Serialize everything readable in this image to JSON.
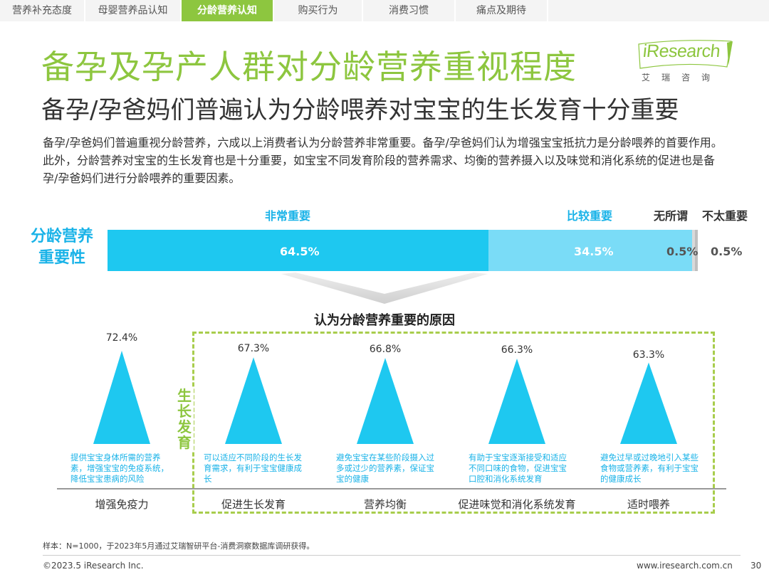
{
  "tabs": [
    {
      "label": "营养补充态度",
      "active": false
    },
    {
      "label": "母婴营养品认知",
      "active": false
    },
    {
      "label": "分龄营养认知",
      "active": true
    },
    {
      "label": "购买行为",
      "active": false
    },
    {
      "label": "消费习惯",
      "active": false
    },
    {
      "label": "痛点及期待",
      "active": false
    }
  ],
  "header": {
    "title": "备孕及孕产人群对分龄营养重视程度",
    "subtitle": "备孕/孕爸妈们普遍认为分龄喂养对宝宝的生长发育十分重要"
  },
  "logo": {
    "text": "iResearch",
    "cn": "艾瑞咨询"
  },
  "body_text": "备孕/孕爸妈们普遍重视分龄营养，六成以上消费者认为分龄营养非常重要。备孕/孕爸妈们认为增强宝宝抵抗力是分龄喂养的首要作用。此外，分龄营养对宝宝的生长发育也是十分重要，如宝宝不同发育阶段的营养需求、均衡的营养摄入以及味觉和消化系统的促进也是备孕/孕爸妈们进行分龄喂养的重要因素。",
  "colors": {
    "accent": "#8dc63f",
    "very_important": "#1ec8f0",
    "fairly_important": "#7adcf7",
    "indifferent": "#d9d9d9",
    "not_important": "#bfbfbf"
  },
  "chart_data": [
    {
      "type": "bar",
      "stacked": true,
      "orientation": "horizontal",
      "categories": [
        "分龄营养重要性"
      ],
      "series": [
        {
          "name": "非常重要",
          "values": [
            64.5
          ],
          "label": "64.5%"
        },
        {
          "name": "比较重要",
          "values": [
            34.5
          ],
          "label": "34.5%"
        },
        {
          "name": "无所谓",
          "values": [
            0.5
          ],
          "label": "0.5%"
        },
        {
          "name": "不太重要",
          "values": [
            0.5
          ],
          "label": "0.5%"
        }
      ],
      "row_label": "分龄营养重要性",
      "row_label_lines": [
        "分龄营养",
        "重要性"
      ]
    },
    {
      "type": "bar",
      "title": "认为分龄营养重要的原因",
      "categories": [
        "增强免疫力",
        "促进生长发育",
        "营养均衡",
        "促进味觉和消化系统发育",
        "适时喂养"
      ],
      "values": [
        72.4,
        67.3,
        66.8,
        66.3,
        63.3
      ],
      "labels": [
        "72.4%",
        "67.3%",
        "66.8%",
        "66.3%",
        "63.3%"
      ],
      "descriptions": [
        "提供宝宝身体所需的营养素，增强宝宝的免疫系统，降低宝宝患病的风险",
        "可以适应不同阶段的生长发育需求，有利于宝宝健康成长",
        "避免宝宝在某些阶段摄入过多或过少的营养素，保证宝宝的健康",
        "有助于宝宝逐渐接受和适应不同口味的食物，促进宝宝口腔和消化系统发育",
        "避免过早或过晚地引入某些食物或营养素，有利于宝宝的健康成长"
      ],
      "group_label": "生长发育",
      "group_label_chars": [
        "生",
        "长",
        "发",
        "育"
      ]
    }
  ],
  "footer": {
    "note": "样本：N=1000，于2023年5月通过艾瑞智研平台-消费洞察数据库调研获得。",
    "copyright": "©2023.5 iResearch Inc.",
    "site": "www.iresearch.com.cn",
    "page": "30"
  }
}
